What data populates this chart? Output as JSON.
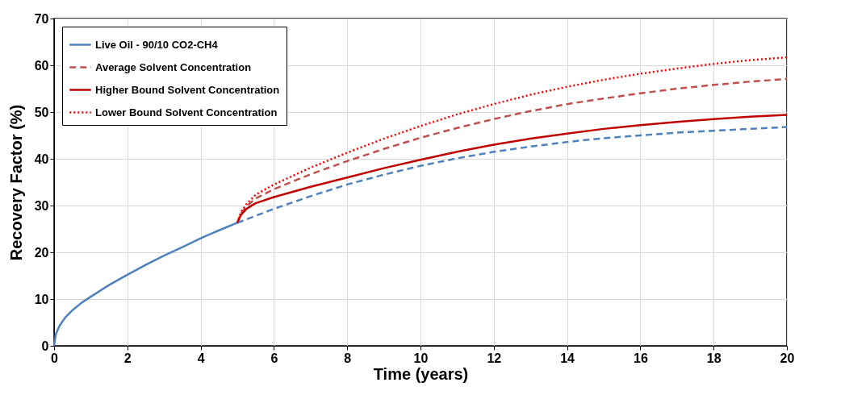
{
  "chart_data": {
    "type": "line",
    "xlabel": "Time (years)",
    "ylabel": "Recovery Factor (%)",
    "xlim": [
      0,
      20
    ],
    "xticks": [
      0,
      2,
      4,
      6,
      8,
      10,
      12,
      14,
      16,
      18,
      20
    ],
    "ylim": [
      0,
      70
    ],
    "yticks": [
      0,
      10,
      20,
      30,
      40,
      50,
      60,
      70
    ],
    "grid": true,
    "legend": "top left",
    "series": [
      {
        "name": "Live Oil - 90/10 CO2-CH4",
        "color": "#4f81bd",
        "line_style": "solid",
        "x": [
          0,
          0.05,
          0.15,
          0.3,
          0.5,
          0.75,
          1,
          1.5,
          2,
          2.5,
          3,
          3.5,
          4,
          4.5,
          5
        ],
        "values": [
          0,
          2.5,
          4.3,
          6,
          7.6,
          9.2,
          10.5,
          13,
          15.2,
          17.3,
          19.3,
          21.1,
          23,
          24.7,
          26.3
        ]
      },
      {
        "color": "#4f81bd",
        "line_style": "dashed",
        "x": [
          5,
          6,
          7,
          8,
          9,
          10,
          11,
          12,
          13,
          14,
          15,
          16,
          17,
          18,
          19,
          20
        ],
        "values": [
          26.3,
          29.3,
          32,
          34.5,
          36.6,
          38.5,
          40.1,
          41.5,
          42.6,
          43.6,
          44.4,
          45,
          45.6,
          46,
          46.4,
          46.8
        ]
      },
      {
        "name": "Average Solvent Concentration",
        "color": "#c0504d",
        "line_style": "dashed",
        "x": [
          5,
          5.1,
          5.25,
          5.5,
          6,
          7,
          8,
          9,
          10,
          11,
          12,
          13,
          14,
          15,
          16,
          17,
          18,
          19,
          20
        ],
        "values": [
          26.3,
          28.3,
          29.8,
          31.5,
          33.5,
          36.7,
          39.5,
          42.1,
          44.5,
          46.6,
          48.5,
          50.2,
          51.7,
          52.9,
          54,
          55,
          55.8,
          56.5,
          57.1
        ]
      },
      {
        "name": "Higher Bound Solvent Concentration",
        "color": "#c00000",
        "line_style": "solid",
        "x": [
          5,
          5.1,
          5.25,
          5.5,
          6,
          7,
          8,
          9,
          10,
          11,
          12,
          13,
          14,
          15,
          16,
          17,
          18,
          19,
          20
        ],
        "values": [
          26.3,
          28,
          29.3,
          30.5,
          31.8,
          34,
          36,
          38,
          39.8,
          41.5,
          43,
          44.3,
          45.4,
          46.4,
          47.2,
          47.9,
          48.5,
          49,
          49.4
        ]
      },
      {
        "name": "Lower Bound Solvent Concentration",
        "color": "#ff0000",
        "line_style": "dotted",
        "x": [
          5,
          5.1,
          5.25,
          5.5,
          6,
          7,
          8,
          9,
          10,
          11,
          12,
          13,
          14,
          15,
          16,
          17,
          18,
          19,
          20
        ],
        "values": [
          26.3,
          28.6,
          30.3,
          32.3,
          34.5,
          38.1,
          41.3,
          44.3,
          47,
          49.5,
          51.7,
          53.7,
          55.4,
          56.9,
          58.2,
          59.3,
          60.3,
          61.1,
          61.7
        ]
      }
    ]
  }
}
